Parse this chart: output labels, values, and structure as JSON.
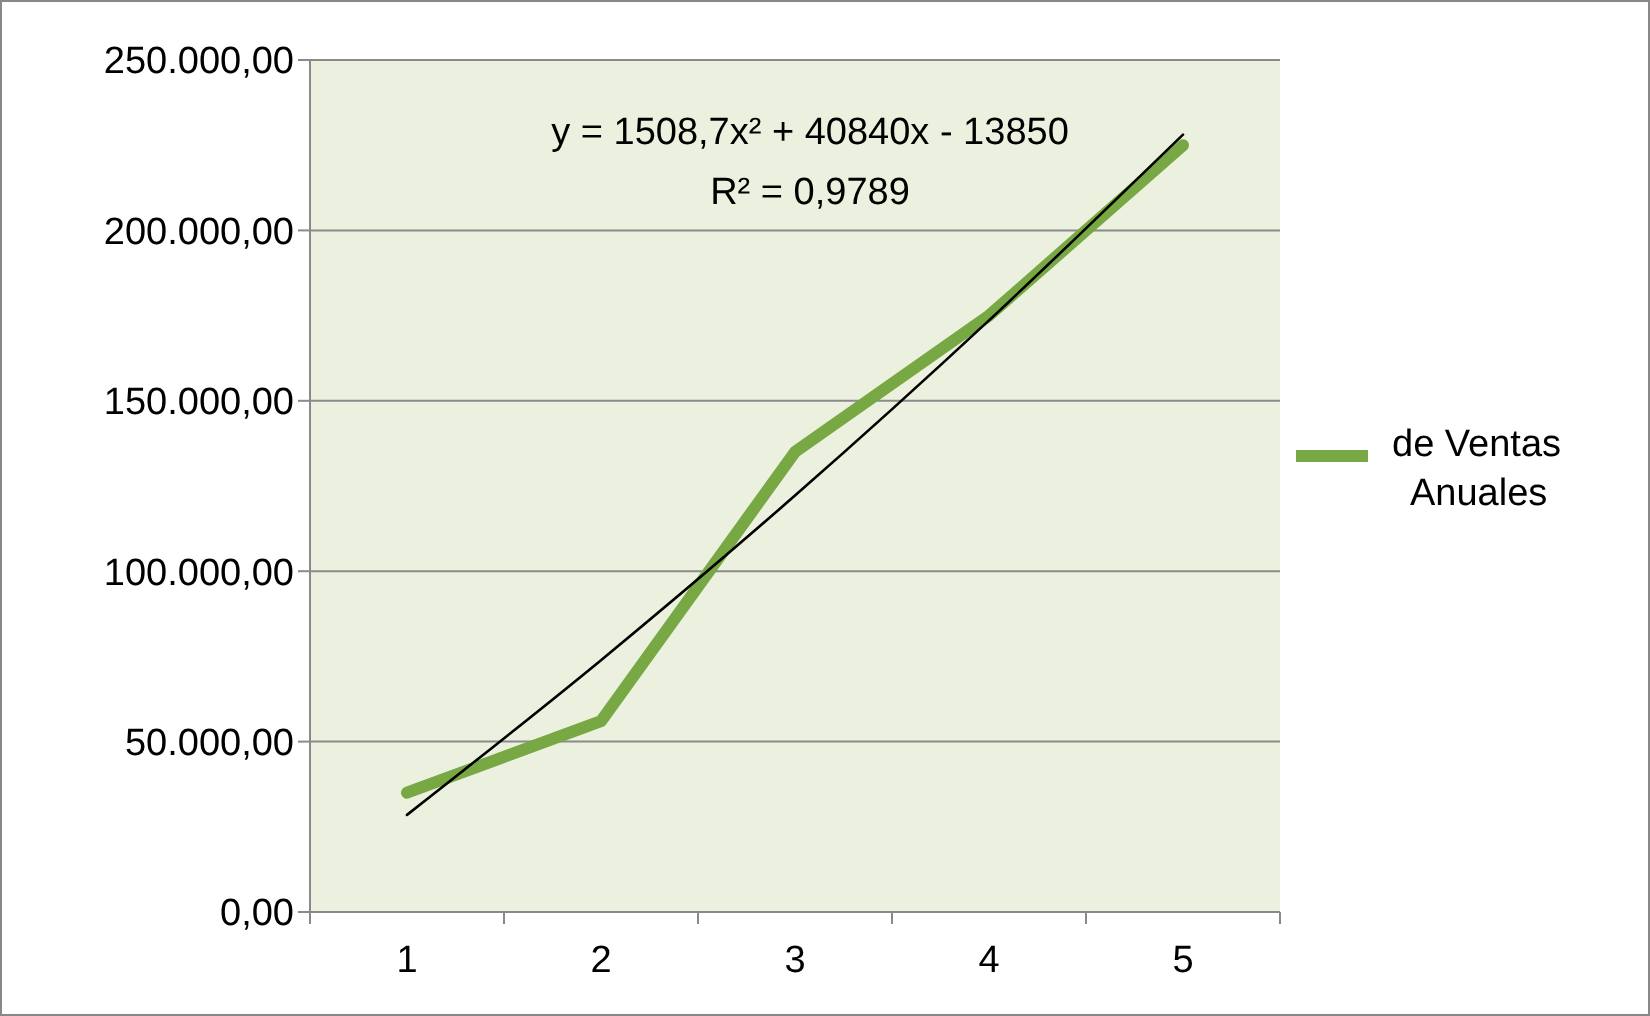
{
  "chart_data": {
    "type": "line",
    "categories": [
      "1",
      "2",
      "3",
      "4",
      "5"
    ],
    "series": [
      {
        "name": "de Ventas Anuales",
        "color": "#77a843",
        "values": [
          35000,
          56000,
          135000,
          175000,
          225000
        ]
      },
      {
        "type": "line",
        "color": "#000000",
        "values": [
          28500,
          73900,
          122200,
          173600,
          228100
        ]
      }
    ],
    "ylim": [
      0,
      250000
    ],
    "yticks": [
      {
        "value": 0,
        "label": "0,00"
      },
      {
        "value": 50000,
        "label": "50.000,00"
      },
      {
        "value": 100000,
        "label": "100.000,00"
      },
      {
        "value": 150000,
        "label": "150.000,00"
      },
      {
        "value": 200000,
        "label": "200.000,00"
      },
      {
        "value": 250000,
        "label": "250.000,00"
      }
    ],
    "grid": "y",
    "legend": "right",
    "marker": "none",
    "annotations": [
      "y = 1508,7x² + 40840x - 13850",
      "R² = 0,9789"
    ]
  }
}
